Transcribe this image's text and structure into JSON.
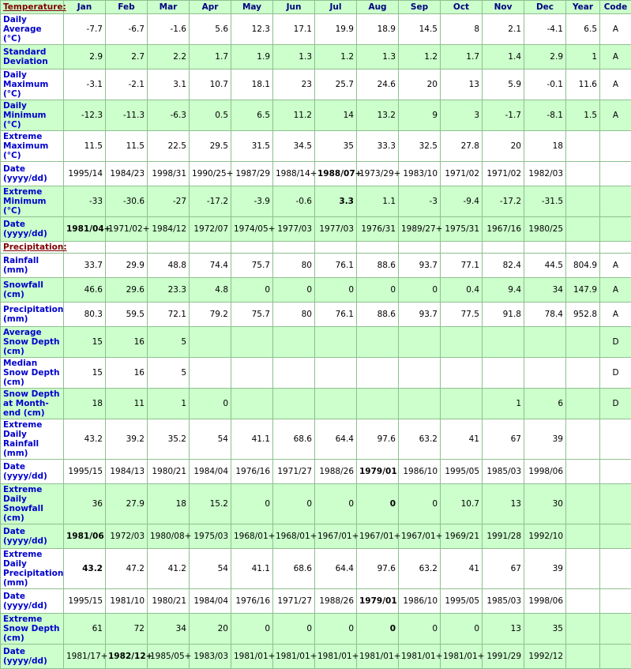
{
  "table": {
    "columns": [
      "Temperature:",
      "Jan",
      "Feb",
      "Mar",
      "Apr",
      "May",
      "Jun",
      "Jul",
      "Aug",
      "Sep",
      "Oct",
      "Nov",
      "Dec",
      "Year",
      "Code"
    ],
    "header_color": "#ccffcc",
    "rows": [
      {
        "label": "Daily Average (°C)",
        "color": "#ffffff",
        "cells": [
          "-7.7",
          "-6.7",
          "-1.6",
          "5.6",
          "12.3",
          "17.1",
          "19.9",
          "18.9",
          "14.5",
          "8",
          "2.1",
          "-4.1",
          "6.5",
          "A"
        ]
      },
      {
        "label": "Standard Deviation",
        "color": "#ccffcc",
        "cells": [
          "2.9",
          "2.7",
          "2.2",
          "1.7",
          "1.9",
          "1.3",
          "1.2",
          "1.3",
          "1.2",
          "1.7",
          "1.4",
          "2.9",
          "1",
          "A"
        ]
      },
      {
        "label": "Daily Maximum (°C)",
        "color": "#ffffff",
        "cells": [
          "-3.1",
          "-2.1",
          "3.1",
          "10.7",
          "18.1",
          "23",
          "25.7",
          "24.6",
          "20",
          "13",
          "5.9",
          "-0.1",
          "11.6",
          "A"
        ]
      },
      {
        "label": "Daily Minimum (°C)",
        "color": "#ccffcc",
        "cells": [
          "-12.3",
          "-11.3",
          "-6.3",
          "0.5",
          "6.5",
          "11.2",
          "14",
          "13.2",
          "9",
          "3",
          "-1.7",
          "-8.1",
          "1.5",
          "A"
        ]
      },
      {
        "label": "Extreme Maximum (°C)",
        "color": "#ffffff",
        "cells": [
          "11.5",
          "11.5",
          "22.5",
          "29.5",
          "31.5",
          "34.5",
          "35",
          "33.3",
          "32.5",
          "27.8",
          "20",
          "18",
          null,
          null
        ]
      },
      {
        "label": "Date (yyyy/dd)",
        "color": "#ffffff",
        "cells": [
          "1995/14",
          "1984/23",
          "1998/31",
          "1990/25+",
          "1987/29",
          "1988/14+",
          "1988/07+",
          "1973/29+",
          "1983/10",
          "1971/02",
          "1971/02",
          "1982/03",
          null,
          null
        ]
      },
      {
        "label": "Extreme Minimum (°C)",
        "color": "#ccffcc",
        "cells": [
          "-33",
          "-30.6",
          "-27",
          "-17.2",
          "-3.9",
          "-0.6",
          "3.3",
          "1.1",
          "-3",
          "-9.4",
          "-17.2",
          "-31.5",
          null,
          null
        ]
      },
      {
        "label": "Date (yyyy/dd)",
        "color": "#ccffcc",
        "cells": [
          "1981/04+",
          "1971/02+",
          "1984/12",
          "1972/07",
          "1974/05+",
          "1977/03",
          "1977/03",
          "1976/31",
          "1989/27+",
          "1975/31",
          "1967/16",
          "1980/25",
          null,
          null
        ]
      },
      {
        "section": "Precipitation:"
      },
      {
        "label": "Rainfall (mm)",
        "color": "#ffffff",
        "cells": [
          "33.7",
          "29.9",
          "48.8",
          "74.4",
          "75.7",
          "80",
          "76.1",
          "88.6",
          "93.7",
          "77.1",
          "82.4",
          "44.5",
          "804.9",
          "A"
        ]
      },
      {
        "label": "Snowfall (cm)",
        "color": "#ccffcc",
        "cells": [
          "46.6",
          "29.6",
          "23.3",
          "4.8",
          "0",
          "0",
          "0",
          "0",
          "0",
          "0.4",
          "9.4",
          "34",
          "147.9",
          "A"
        ]
      },
      {
        "label": "Precipitation (mm)",
        "color": "#ffffff",
        "cells": [
          "80.3",
          "59.5",
          "72.1",
          "79.2",
          "75.7",
          "80",
          "76.1",
          "88.6",
          "93.7",
          "77.5",
          "91.8",
          "78.4",
          "952.8",
          "A"
        ]
      },
      {
        "label": "Average Snow Depth (cm)",
        "color": "#ccffcc",
        "cells": [
          "15",
          "16",
          "5",
          null,
          null,
          null,
          null,
          null,
          null,
          null,
          null,
          null,
          null,
          "D"
        ]
      },
      {
        "label": "Median Snow Depth (cm)",
        "color": "#ffffff",
        "cells": [
          "15",
          "16",
          "5",
          null,
          null,
          null,
          null,
          null,
          null,
          null,
          null,
          null,
          null,
          "D"
        ]
      },
      {
        "label": "Snow Depth at Month-end (cm)",
        "color": "#ccffcc",
        "cells": [
          "18",
          "11",
          "1",
          "0",
          null,
          null,
          null,
          null,
          null,
          null,
          "1",
          "6",
          null,
          "D"
        ]
      },
      {
        "label": "Extreme Daily Rainfall (mm)",
        "color": "#ffffff",
        "cells": [
          "43.2",
          "39.2",
          "35.2",
          "54",
          "41.1",
          "68.6",
          "64.4",
          "97.6",
          "63.2",
          "41",
          "67",
          "39",
          null,
          null
        ]
      },
      {
        "label": "Date (yyyy/dd)",
        "color": "#ffffff",
        "cells": [
          "1995/15",
          "1984/13",
          "1980/21",
          "1984/04",
          "1976/16",
          "1971/27",
          "1988/26",
          "1979/01",
          "1986/10",
          "1995/05",
          "1985/03",
          "1998/06",
          null,
          null
        ]
      },
      {
        "label": "Extreme Daily Snowfall (cm)",
        "color": "#ccffcc",
        "cells": [
          "36",
          "27.9",
          "18",
          "15.2",
          "0",
          "0",
          "0",
          "0",
          "0",
          "10.7",
          "13",
          "30",
          null,
          null
        ]
      },
      {
        "label": "Date (yyyy/dd)",
        "color": "#ccffcc",
        "cells": [
          "1981/06",
          "1972/03",
          "1980/08+",
          "1975/03",
          "1968/01+",
          "1968/01+",
          "1967/01+",
          "1967/01+",
          "1967/01+",
          "1969/21",
          "1991/28",
          "1992/10",
          null,
          null
        ]
      },
      {
        "label": "Extreme Daily Precipitation (mm)",
        "color": "#ffffff",
        "cells": [
          "43.2",
          "47.2",
          "41.2",
          "54",
          "41.1",
          "68.6",
          "64.4",
          "97.6",
          "63.2",
          "41",
          "67",
          "39",
          null,
          null
        ]
      },
      {
        "label": "Date (yyyy/dd)",
        "color": "#ffffff",
        "cells": [
          "1995/15",
          "1981/10",
          "1980/21",
          "1984/04",
          "1976/16",
          "1971/27",
          "1988/26",
          "1979/01",
          "1986/10",
          "1995/05",
          "1985/03",
          "1998/06",
          null,
          null
        ]
      },
      {
        "label": "Extreme Snow Depth (cm)",
        "color": "#ccffcc",
        "cells": [
          "61",
          "72",
          "34",
          "20",
          "0",
          "0",
          "0",
          "0",
          "0",
          "0",
          "13",
          "35",
          null,
          null
        ]
      },
      {
        "label": "Date (yyyy/dd)",
        "color": "#ccffcc",
        "cells": [
          "1981/17+",
          "1982/12+",
          "1985/05+",
          "1983/03",
          "1981/01+",
          "1981/01+",
          "1981/01+",
          "1981/01+",
          "1981/01+",
          "1981/01+",
          "1991/29",
          "1992/12",
          null,
          null
        ]
      }
    ]
  }
}
